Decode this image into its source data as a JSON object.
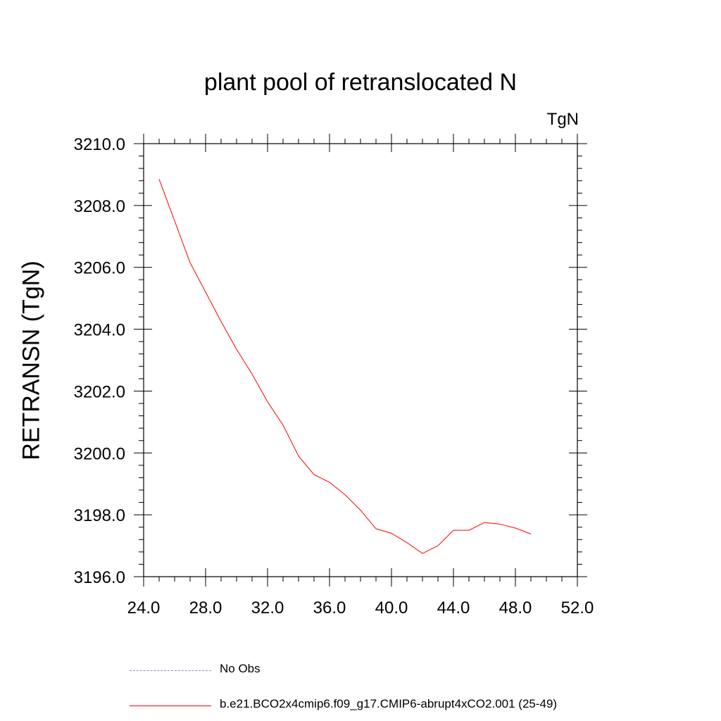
{
  "chart_data": {
    "type": "line",
    "title": "plant pool of retranslocated N",
    "units": "TgN",
    "xlabel": "",
    "ylabel": "RETRANSN  (TgN)",
    "xlim": [
      24,
      52
    ],
    "ylim": [
      3196,
      3210
    ],
    "xticks": [
      24,
      28,
      32,
      36,
      40,
      44,
      48,
      52
    ],
    "xtick_labels": [
      "24.0",
      "28.0",
      "32.0",
      "36.0",
      "40.0",
      "44.0",
      "48.0",
      "52.0"
    ],
    "yticks": [
      3196,
      3198,
      3200,
      3202,
      3204,
      3206,
      3208,
      3210
    ],
    "ytick_labels": [
      "3196.0",
      "3198.0",
      "3200.0",
      "3202.0",
      "3204.0",
      "3206.0",
      "3208.0",
      "3210.0"
    ],
    "grid": false,
    "legend_position": "bottom",
    "series": [
      {
        "name": "b.e21.BCO2x4cmip6.f09_g17.CMIP6-abrupt4xCO2.001 (25-49)",
        "color": "#ff0000",
        "style": "solid",
        "x": [
          25,
          26,
          27,
          28,
          29,
          30,
          31,
          32,
          33,
          34,
          35,
          36,
          37,
          38,
          39,
          40,
          41,
          42,
          43,
          44,
          45,
          46,
          47,
          48,
          49
        ],
        "y": [
          3208.85,
          3207.5,
          3206.15,
          3205.2,
          3204.25,
          3203.35,
          3202.55,
          3201.65,
          3200.9,
          3199.9,
          3199.3,
          3199.05,
          3198.65,
          3198.15,
          3197.55,
          3197.4,
          3197.1,
          3196.75,
          3197.0,
          3197.5,
          3197.5,
          3197.75,
          3197.7,
          3197.57,
          3197.38
        ]
      }
    ],
    "legend_entries": [
      {
        "label": "No Obs",
        "color": "#8c8cd9",
        "style": "dashed"
      },
      {
        "label": "b.e21.BCO2x4cmip6.f09_g17.CMIP6-abrupt4xCO2.001 (25-49)",
        "color": "#ff0000",
        "style": "solid"
      }
    ]
  }
}
